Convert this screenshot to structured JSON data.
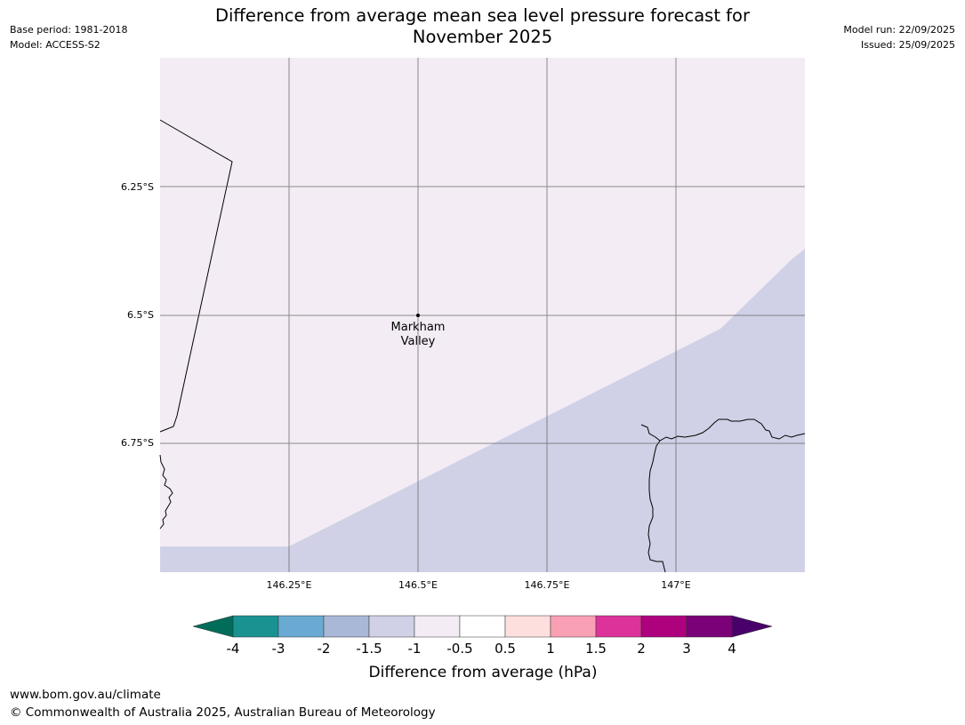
{
  "header": {
    "base_period": "Base period: 1981-2018",
    "model": "Model: ACCESS-S2",
    "model_run": "Model run: 22/09/2025",
    "issued": "Issued: 25/09/2025",
    "title_line1": "Difference from average mean sea level pressure forecast for",
    "title_line2": "November 2025"
  },
  "map": {
    "lat_labels": [
      "6.25°S",
      "6.5°S",
      "6.75°S"
    ],
    "lon_labels": [
      "146.25°E",
      "146.5°E",
      "146.75°E",
      "147°E"
    ],
    "place": {
      "name_line1": "Markham",
      "name_line2": "Valley"
    },
    "region_colors": {
      "northwest": "#f3ecf5",
      "southeast": "#d0d1e6"
    },
    "extent": {
      "lon_min": 146.0,
      "lon_max": 147.25,
      "lat_top": -6.0,
      "lat_bottom": -7.0
    }
  },
  "colorbar": {
    "ticks": [
      "-4",
      "-3",
      "-2",
      "-1.5",
      "-1",
      "-0.5",
      "0.5",
      "1",
      "1.5",
      "2",
      "3",
      "4"
    ],
    "colors": [
      "#1a9292",
      "#6aaad2",
      "#a9b8d6",
      "#d0d1e6",
      "#f3ecf5",
      "#ffffff",
      "#fde0dd",
      "#f9a0b5",
      "#dc339a",
      "#ae017e",
      "#7a0177"
    ],
    "under_color": "#016c59",
    "over_color": "#49006a",
    "label": "Difference from average (hPa)"
  },
  "footer": {
    "url": "www.bom.gov.au/climate",
    "copyright": "© Commonwealth of Australia 2025, Australian Bureau of Meteorology"
  }
}
